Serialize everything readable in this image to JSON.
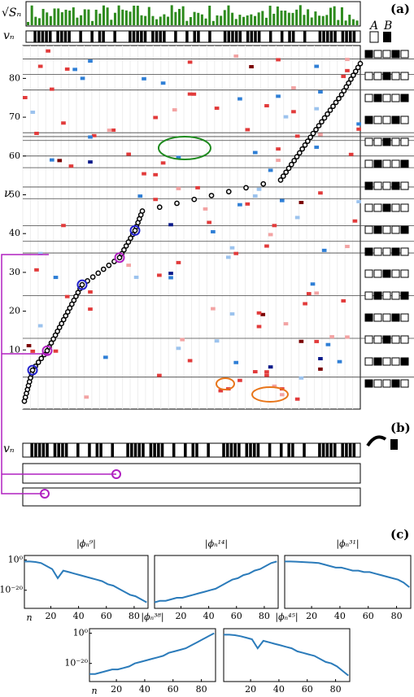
{
  "labels": {
    "a": "(a)",
    "b": "(b)",
    "c": "(c)",
    "sqrt_s": "√Sₙ",
    "v_top": "vₙ",
    "v_b": "vₙ",
    "nu": "ν",
    "A": "A",
    "B": "B"
  },
  "heatmap": {
    "ylim": [
      -5,
      89
    ],
    "yticks": [
      10,
      20,
      30,
      40,
      50,
      60,
      70,
      80
    ]
  },
  "chart_data": [
    {
      "type": "line",
      "title": "|ϕₙ⁹|",
      "xlabel": "n",
      "log_y": true,
      "color": "#2b7bba",
      "x": [
        1,
        5,
        9,
        13,
        17,
        21,
        25,
        29,
        33,
        37,
        41,
        45,
        49,
        53,
        57,
        61,
        65,
        69,
        73,
        77,
        81,
        85,
        89
      ],
      "values": [
        0.1,
        0.1,
        0.05,
        0.01,
        0.0001,
        1e-06,
        1e-12,
        1e-07,
        1e-08,
        1e-09,
        1e-10,
        1e-11,
        1e-12,
        1e-13,
        1e-14,
        1e-16,
        1e-17,
        1e-19,
        1e-21,
        1e-23,
        1e-24,
        1e-26,
        1e-28
      ],
      "xlim": [
        1,
        90
      ],
      "xticks": [
        20,
        40,
        60,
        80
      ],
      "ylim": [
        1e-32,
        1000
      ],
      "yticks": [
        {
          "value": 1,
          "label": "10⁰"
        },
        {
          "value": 1e-20,
          "label": "10⁻²⁰"
        }
      ]
    },
    {
      "type": "line",
      "title": "|ϕₙ¹⁴|",
      "log_y": true,
      "color": "#2b7bba",
      "x": [
        1,
        5,
        9,
        13,
        17,
        21,
        25,
        29,
        33,
        37,
        41,
        45,
        49,
        53,
        57,
        61,
        65,
        69,
        73,
        77,
        81,
        85,
        89
      ],
      "values": [
        1e-28,
        1e-27,
        1e-27,
        1e-26,
        1e-25,
        1e-25,
        1e-24,
        1e-23,
        1e-22,
        1e-21,
        1e-20,
        1e-19,
        1e-17,
        1e-15,
        1e-13,
        1e-12,
        1e-10,
        1e-09,
        1e-07,
        1e-06,
        0.0001,
        0.01,
        0.1
      ],
      "xlim": [
        1,
        90
      ],
      "xticks": [
        20,
        40,
        60,
        80
      ],
      "ylim": [
        1e-32,
        1000
      ]
    },
    {
      "type": "line",
      "title": "|ϕₙ³¹|",
      "log_y": true,
      "color": "#2b7bba",
      "x": [
        1,
        5,
        9,
        13,
        17,
        21,
        25,
        29,
        33,
        37,
        41,
        45,
        49,
        53,
        57,
        61,
        65,
        69,
        73,
        77,
        81,
        85,
        89
      ],
      "values": [
        0.1,
        0.1,
        0.08,
        0.05,
        0.03,
        0.02,
        0.01,
        0.001,
        0.0001,
        1e-05,
        1e-05,
        1e-06,
        1e-07,
        1e-07,
        1e-08,
        1e-08,
        1e-09,
        1e-10,
        1e-11,
        1e-12,
        1e-13,
        1e-15,
        1e-18
      ],
      "xlim": [
        1,
        90
      ],
      "xticks": [
        20,
        40,
        60,
        80
      ],
      "ylim": [
        1e-32,
        1000
      ]
    },
    {
      "type": "line",
      "title": "|ϕₙ³⁸|",
      "xlabel": "n",
      "log_y": true,
      "color": "#2b7bba",
      "x": [
        1,
        5,
        9,
        13,
        17,
        21,
        25,
        29,
        33,
        37,
        41,
        45,
        49,
        53,
        57,
        61,
        65,
        69,
        73,
        77,
        81,
        85,
        89
      ],
      "values": [
        1e-27,
        1e-27,
        1e-26,
        1e-25,
        1e-24,
        1e-24,
        1e-23,
        1e-22,
        1e-20,
        1e-19,
        1e-18,
        1e-17,
        1e-16,
        1e-15,
        1e-13,
        1e-12,
        1e-11,
        1e-10,
        1e-08,
        1e-06,
        0.0001,
        0.01,
        1
      ],
      "xlim": [
        1,
        90
      ],
      "xticks": [
        20,
        40,
        60,
        80
      ],
      "ylim": [
        1e-32,
        1000
      ],
      "yticks": [
        {
          "value": 1,
          "label": "10⁰"
        },
        {
          "value": 1e-20,
          "label": "10⁻²⁰"
        }
      ]
    },
    {
      "type": "line",
      "title": "|ϕₙ⁴⁵|",
      "log_y": true,
      "color": "#2b7bba",
      "x": [
        1,
        5,
        9,
        13,
        17,
        21,
        25,
        29,
        33,
        37,
        41,
        45,
        49,
        53,
        57,
        61,
        65,
        69,
        73,
        77,
        81,
        85,
        89
      ],
      "values": [
        0.1,
        0.1,
        0.05,
        0.01,
        0.001,
        0.0001,
        1e-10,
        1e-05,
        1e-06,
        1e-07,
        1e-08,
        1e-09,
        1e-10,
        1e-12,
        1e-13,
        1e-14,
        1e-15,
        1e-17,
        1e-19,
        1e-20,
        1e-22,
        1e-25,
        1e-28
      ],
      "xlim": [
        1,
        90
      ],
      "xticks": [
        20,
        40,
        60,
        80
      ],
      "ylim": [
        1e-32,
        1000
      ]
    }
  ]
}
